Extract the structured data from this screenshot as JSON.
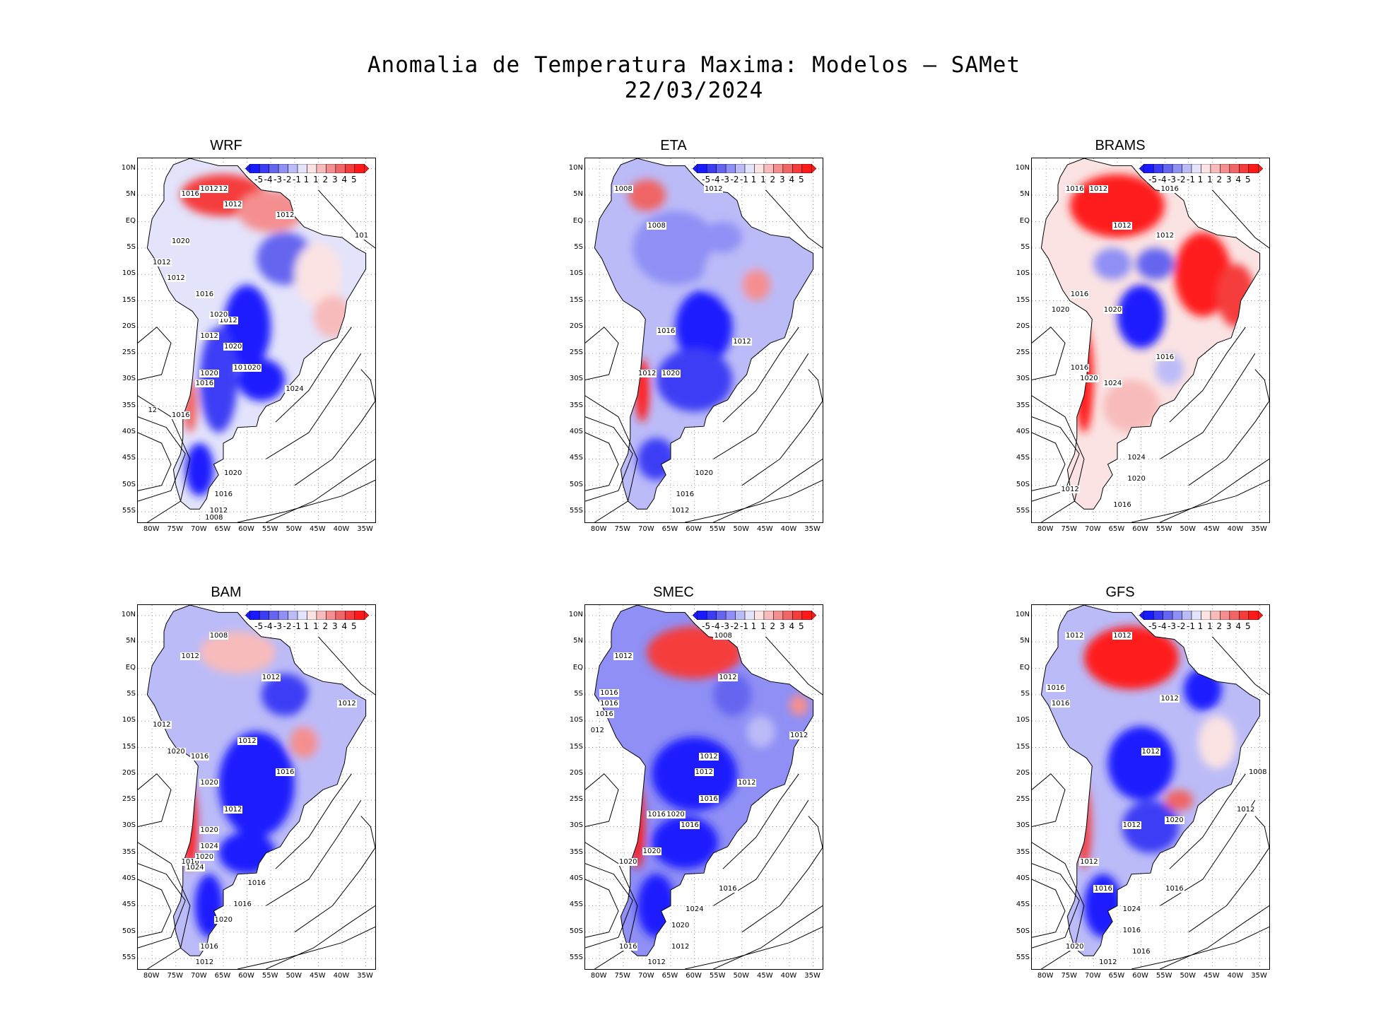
{
  "title_line1": "Anomalia de Temperatura Maxima: Modelos – SAMet",
  "title_line2": "22/03/2024",
  "lat_labels": [
    "10N",
    "5N",
    "EQ",
    "5S",
    "10S",
    "15S",
    "20S",
    "25S",
    "30S",
    "35S",
    "40S",
    "45S",
    "50S",
    "55S"
  ],
  "lon_labels": [
    "80W",
    "75W",
    "70W",
    "65W",
    "60W",
    "55W",
    "50W",
    "45W",
    "40W",
    "35W"
  ],
  "colorbar": {
    "labels": [
      "-5",
      "-4",
      "-3",
      "-2",
      "-1",
      "1",
      "1",
      "2",
      "3",
      "4",
      "5"
    ],
    "colors": [
      "#1a1aff",
      "#3c3cf5",
      "#6565f0",
      "#8f8ff5",
      "#bbbbf8",
      "#e3e3fb",
      "#fbe3e3",
      "#f8bbbb",
      "#f58f8f",
      "#f06565",
      "#f53c3c",
      "#ff1a1a"
    ]
  },
  "panels": [
    {
      "name": "WRF",
      "isobars": [
        "1012",
        "1016",
        "1012",
        "1012",
        "1012",
        "1020",
        "1012",
        "1012",
        "1016",
        "1012",
        "1020",
        "1012",
        "1020",
        "1016",
        "1020",
        "1016",
        "1020",
        "1024",
        "1016",
        "1020",
        "1016",
        "1012",
        "1008",
        "101",
        "12"
      ]
    },
    {
      "name": "ETA",
      "isobars": [
        "1008",
        "1012",
        "1008",
        "1016",
        "1012",
        "1012",
        "1020",
        "1020",
        "1016",
        "1012"
      ]
    },
    {
      "name": "BRAMS",
      "isobars": [
        "1016",
        "1016",
        "1012",
        "1012",
        "1012",
        "1016",
        "1020",
        "1020",
        "1016",
        "1016",
        "1020",
        "1024",
        "1024",
        "1020",
        "1012",
        "1016"
      ]
    },
    {
      "name": "BAM",
      "isobars": [
        "1012",
        "1012",
        "1012",
        "1012",
        "1012",
        "1012",
        "1020",
        "1016",
        "1020",
        "1012",
        "1016",
        "1020",
        "1016",
        "1024",
        "1020",
        "1016",
        "1024",
        "1016",
        "1020",
        "1016",
        "1012",
        "1008"
      ]
    },
    {
      "name": "SMEC",
      "isobars": [
        "1012",
        "1012",
        "1012",
        "1016",
        "1016",
        "1016",
        "012",
        "1012",
        "1012",
        "1012",
        "1012",
        "1016",
        "1020",
        "1016",
        "1020",
        "1016",
        "1020",
        "1016",
        "1024",
        "1020",
        "1016",
        "1012",
        "1012",
        "1008"
      ]
    },
    {
      "name": "GFS",
      "isobars": [
        "1012",
        "1012",
        "1016",
        "1016",
        "1012",
        "1012",
        "1012",
        "1012",
        "1020",
        "1016",
        "1016",
        "1024",
        "1016",
        "1020",
        "1016",
        "1012",
        "1012",
        "1008"
      ]
    }
  ]
}
